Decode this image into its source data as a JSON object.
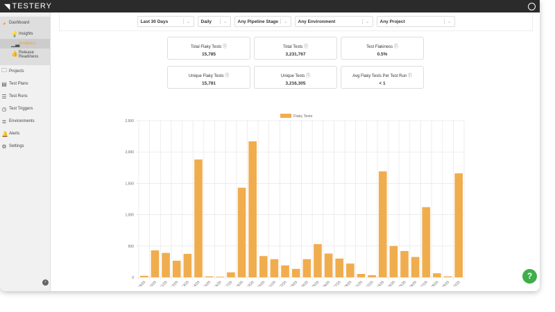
{
  "app": {
    "name": "TESTERY"
  },
  "sidebar": {
    "items": [
      {
        "label": "Dashboard",
        "icon": "dashboard-icon"
      },
      {
        "label": "Insights",
        "icon": "lightbulb-icon",
        "sub": true
      },
      {
        "label": "Analytics",
        "icon": "chart-icon",
        "sub": true,
        "active": true
      },
      {
        "label": "Release Readiness",
        "icon": "thumbs-up-icon",
        "sub": true
      },
      {
        "label": "Projects",
        "icon": "folder-icon"
      },
      {
        "label": "Test Plans",
        "icon": "clipboard-icon"
      },
      {
        "label": "Test Runs",
        "icon": "list-icon"
      },
      {
        "label": "Test Triggers",
        "icon": "clock-icon"
      },
      {
        "label": "Environments",
        "icon": "server-icon"
      },
      {
        "label": "Alerts",
        "icon": "bell-icon"
      },
      {
        "label": "Settings",
        "icon": "gears-icon"
      }
    ]
  },
  "filters": [
    {
      "value": "Last 30 Days"
    },
    {
      "value": "Daily"
    },
    {
      "value": "Any Pipeline Stage"
    },
    {
      "value": "Any Environment"
    },
    {
      "value": "Any Project"
    }
  ],
  "cards": [
    {
      "title": "Total Flaky Tests",
      "value": "15,785"
    },
    {
      "title": "Total Tests",
      "value": "3,231,767"
    },
    {
      "title": "Test Flakiness",
      "value": "0.5%"
    },
    {
      "title": "Unique Flaky Tests",
      "value": "15,781"
    },
    {
      "title": "Unique Tests",
      "value": "3,216,305"
    },
    {
      "title": "Avg Flaky Tests Per Test Run",
      "value": "< 1"
    }
  ],
  "help": "?",
  "colors": {
    "bar": "#f0ad4e",
    "accent": "#f0a030",
    "help": "#3fae49"
  },
  "chart_data": {
    "type": "bar",
    "legend": "top",
    "grid": true,
    "series": [
      {
        "name": "Flaky Tests",
        "values": [
          25,
          430,
          390,
          265,
          375,
          1880,
          15,
          10,
          80,
          1430,
          2170,
          340,
          290,
          190,
          135,
          290,
          530,
          380,
          300,
          220,
          55,
          35,
          1690,
          500,
          420,
          325,
          1120,
          65,
          15,
          1660
        ]
      }
    ],
    "categories": [
      "02/09/25",
      "02/10/25",
      "02/11/25",
      "02/12/25",
      "02/13/25",
      "02/14/25",
      "02/15/25",
      "02/16/25",
      "02/17/25",
      "02/18/25",
      "02/19/25",
      "02/20/25",
      "02/21/25",
      "02/22/25",
      "02/23/25",
      "02/24/25",
      "02/25/25",
      "02/26/25",
      "02/27/25",
      "02/28/25",
      "03/01/25",
      "03/02/25",
      "03/03/25",
      "03/04/25",
      "03/05/25",
      "03/06/25",
      "03/07/25",
      "03/08/25",
      "03/09/25",
      "03/10/25"
    ],
    "yticks": [
      "0",
      "500",
      "1,000",
      "1,500",
      "2,000",
      "2,500"
    ],
    "ylim": [
      0,
      2500
    ]
  }
}
